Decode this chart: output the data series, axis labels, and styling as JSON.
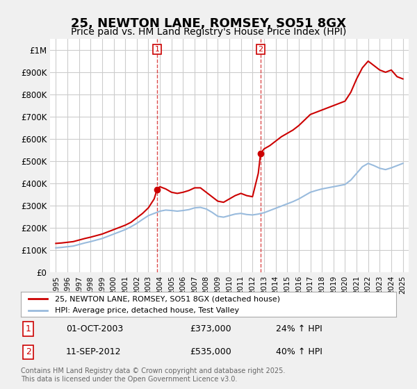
{
  "title": "25, NEWTON LANE, ROMSEY, SO51 8GX",
  "subtitle": "Price paid vs. HM Land Registry's House Price Index (HPI)",
  "title_fontsize": 13,
  "subtitle_fontsize": 10,
  "ylabel_ticks": [
    0,
    100000,
    200000,
    300000,
    400000,
    500000,
    600000,
    700000,
    800000,
    900000,
    1000000
  ],
  "ylabel_labels": [
    "£0",
    "£100K",
    "£200K",
    "£300K",
    "£400K",
    "£500K",
    "£600K",
    "£700K",
    "£800K",
    "£900K",
    "£1M"
  ],
  "ylim": [
    0,
    1050000
  ],
  "xlim_start": 1994.5,
  "xlim_end": 2025.5,
  "background_color": "#f0f0f0",
  "plot_background": "#ffffff",
  "grid_color": "#cccccc",
  "red_color": "#cc0000",
  "blue_color": "#99bbdd",
  "annotation_color": "#cc0000",
  "annotation_box_color": "#cc0000",
  "legend_label_red": "25, NEWTON LANE, ROMSEY, SO51 8GX (detached house)",
  "legend_label_blue": "HPI: Average price, detached house, Test Valley",
  "footer": "Contains HM Land Registry data © Crown copyright and database right 2025.\nThis data is licensed under the Open Government Licence v3.0.",
  "sale1_label": "1",
  "sale1_date": "01-OCT-2003",
  "sale1_price": "£373,000",
  "sale1_hpi": "24% ↑ HPI",
  "sale1_year": 2003.75,
  "sale1_value": 373000,
  "sale2_label": "2",
  "sale2_date": "11-SEP-2012",
  "sale2_price": "£535,000",
  "sale2_hpi": "40% ↑ HPI",
  "sale2_year": 2012.7,
  "sale2_value": 535000,
  "hpi_years": [
    1995,
    1995.5,
    1996,
    1996.5,
    1997,
    1997.5,
    1998,
    1998.5,
    1999,
    1999.5,
    2000,
    2000.5,
    2001,
    2001.5,
    2002,
    2002.5,
    2003,
    2003.5,
    2004,
    2004.5,
    2005,
    2005.5,
    2006,
    2006.5,
    2007,
    2007.5,
    2008,
    2008.5,
    2009,
    2009.5,
    2010,
    2010.5,
    2011,
    2011.5,
    2012,
    2012.5,
    2013,
    2013.5,
    2014,
    2014.5,
    2015,
    2015.5,
    2016,
    2016.5,
    2017,
    2017.5,
    2018,
    2018.5,
    2019,
    2019.5,
    2020,
    2020.5,
    2021,
    2021.5,
    2022,
    2022.5,
    2023,
    2023.5,
    2024,
    2024.5,
    2025
  ],
  "hpi_values": [
    110000,
    112000,
    115000,
    118000,
    125000,
    132000,
    138000,
    145000,
    152000,
    162000,
    172000,
    182000,
    192000,
    205000,
    220000,
    238000,
    255000,
    265000,
    275000,
    280000,
    278000,
    275000,
    278000,
    282000,
    290000,
    292000,
    285000,
    270000,
    252000,
    248000,
    255000,
    262000,
    265000,
    260000,
    258000,
    262000,
    268000,
    278000,
    288000,
    298000,
    308000,
    318000,
    330000,
    345000,
    360000,
    368000,
    375000,
    380000,
    385000,
    390000,
    395000,
    415000,
    445000,
    475000,
    490000,
    480000,
    468000,
    462000,
    470000,
    480000,
    490000
  ],
  "red_years": [
    1995,
    1995.5,
    1996,
    1996.5,
    1997,
    1997.5,
    1998,
    1998.5,
    1999,
    1999.5,
    2000,
    2000.5,
    2001,
    2001.5,
    2002,
    2002.5,
    2003,
    2003.5,
    2003.75,
    2004,
    2004.5,
    2005,
    2005.5,
    2006,
    2006.5,
    2007,
    2007.5,
    2008,
    2008.5,
    2009,
    2009.5,
    2010,
    2010.5,
    2011,
    2011.5,
    2012,
    2012.5,
    2012.7,
    2013,
    2013.5,
    2014,
    2014.5,
    2015,
    2015.5,
    2016,
    2016.5,
    2017,
    2017.5,
    2018,
    2018.5,
    2019,
    2019.5,
    2020,
    2020.5,
    2021,
    2021.5,
    2022,
    2022.5,
    2023,
    2023.5,
    2024,
    2024.5,
    2025
  ],
  "red_values": [
    130000,
    132000,
    135000,
    138000,
    145000,
    152000,
    158000,
    165000,
    172000,
    182000,
    192000,
    202000,
    212000,
    225000,
    245000,
    265000,
    290000,
    330000,
    373000,
    385000,
    375000,
    360000,
    355000,
    360000,
    368000,
    380000,
    380000,
    360000,
    340000,
    320000,
    315000,
    330000,
    345000,
    355000,
    345000,
    340000,
    445000,
    535000,
    555000,
    570000,
    590000,
    610000,
    625000,
    640000,
    660000,
    685000,
    710000,
    720000,
    730000,
    740000,
    750000,
    760000,
    770000,
    810000,
    870000,
    920000,
    950000,
    930000,
    910000,
    900000,
    910000,
    880000,
    870000
  ],
  "xtick_years": [
    1995,
    1996,
    1997,
    1998,
    1999,
    2000,
    2001,
    2002,
    2003,
    2004,
    2005,
    2006,
    2007,
    2008,
    2009,
    2010,
    2011,
    2012,
    2013,
    2014,
    2015,
    2016,
    2017,
    2018,
    2019,
    2020,
    2021,
    2022,
    2023,
    2024,
    2025
  ]
}
